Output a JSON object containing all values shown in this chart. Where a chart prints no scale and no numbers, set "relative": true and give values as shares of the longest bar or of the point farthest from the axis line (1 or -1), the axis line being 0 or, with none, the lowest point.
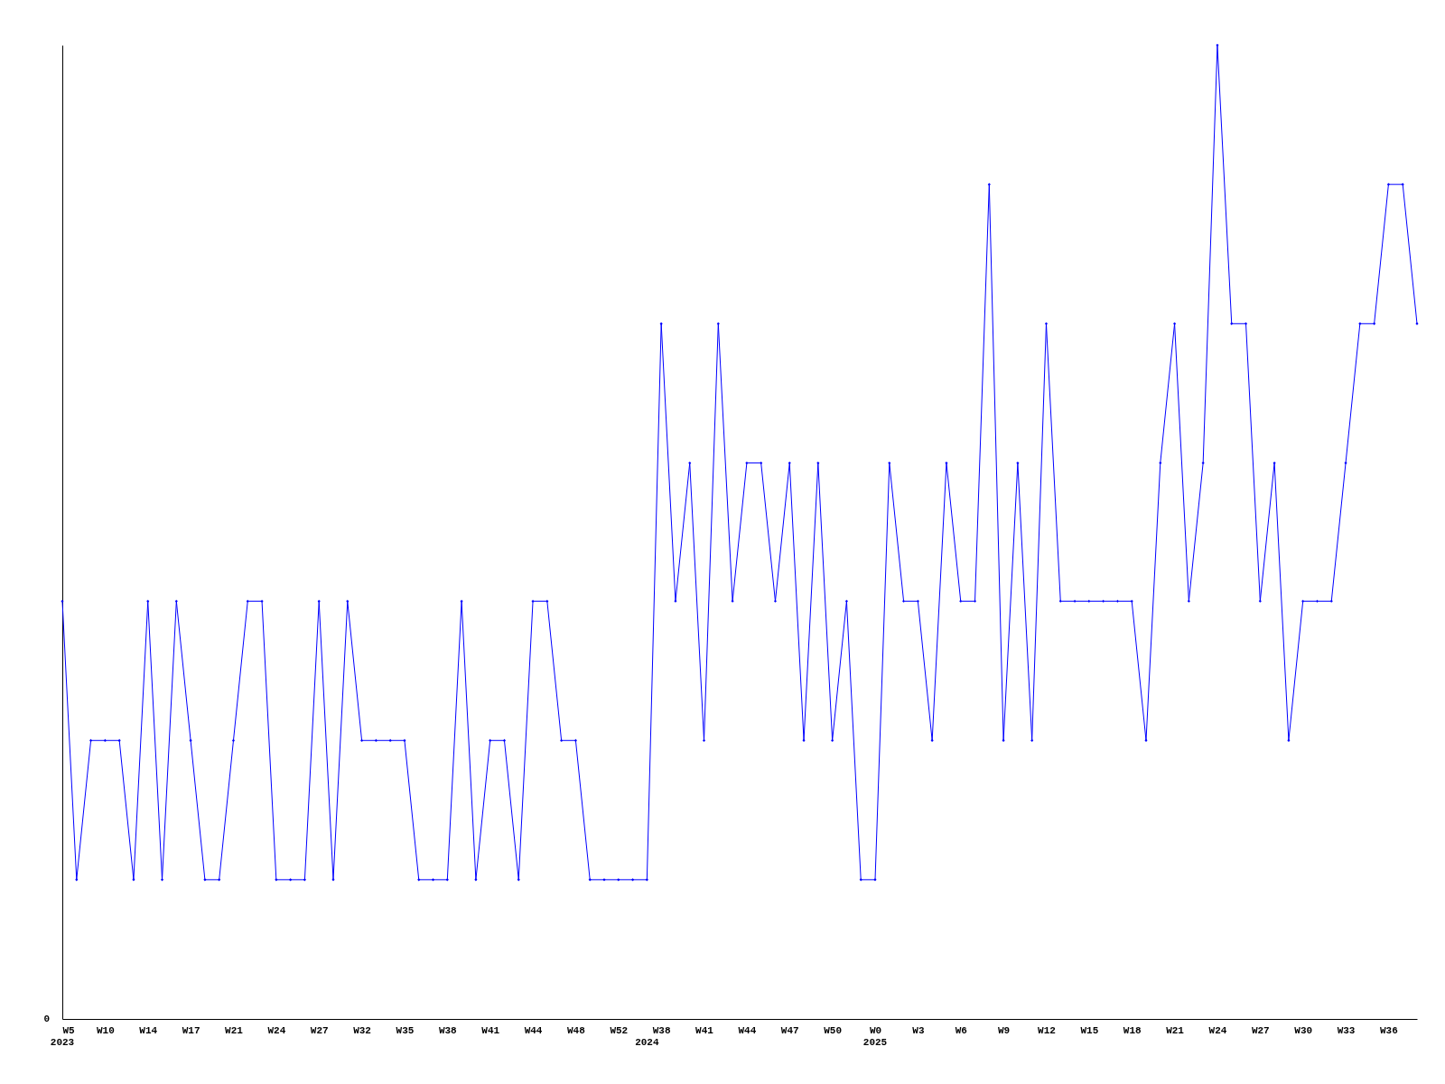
{
  "chart_data": {
    "type": "line",
    "relative": true,
    "marker": "diamond",
    "line_style": "solid",
    "grid": false,
    "legend": false,
    "annotations": [
      "0"
    ],
    "categories": [
      "W5\n2023",
      null,
      null,
      "W10",
      null,
      null,
      "W14",
      null,
      null,
      "W17",
      null,
      null,
      "W21",
      null,
      null,
      "W24",
      null,
      null,
      "W27",
      null,
      null,
      "W32",
      null,
      null,
      "W35",
      null,
      null,
      "W38",
      null,
      null,
      "W41",
      null,
      null,
      "W44",
      null,
      null,
      "W48",
      null,
      null,
      "W52",
      null,
      "\n2024",
      "W38",
      null,
      null,
      "W41",
      null,
      null,
      "W44",
      null,
      null,
      "W47",
      null,
      null,
      "W50",
      null,
      null,
      "W0\n2025",
      null,
      null,
      "W3",
      null,
      null,
      "W6",
      null,
      null,
      "W9",
      null,
      null,
      "W12",
      null,
      null,
      "W15",
      null,
      null,
      "W18",
      null,
      null,
      "W21",
      null,
      null,
      "W24",
      null,
      null,
      "W27",
      null,
      null,
      "W30",
      null,
      null,
      "W33",
      null,
      null,
      "W36",
      null,
      null
    ],
    "series": [
      {
        "color": "#0000ff",
        "values": [
          0.429,
          0.143,
          0.286,
          0.286,
          0.286,
          0.143,
          0.429,
          0.143,
          0.429,
          0.286,
          0.143,
          0.143,
          0.286,
          0.429,
          0.429,
          0.143,
          0.143,
          0.143,
          0.429,
          0.143,
          0.429,
          0.286,
          0.286,
          0.286,
          0.286,
          0.143,
          0.143,
          0.143,
          0.429,
          0.143,
          0.286,
          0.286,
          0.143,
          0.429,
          0.429,
          0.286,
          0.286,
          0.143,
          0.143,
          0.143,
          0.143,
          0.143,
          0.714,
          0.429,
          0.571,
          0.286,
          0.714,
          0.429,
          0.571,
          0.571,
          0.429,
          0.571,
          0.286,
          0.571,
          0.286,
          0.429,
          0.143,
          0.143,
          0.571,
          0.429,
          0.429,
          0.286,
          0.571,
          0.429,
          0.429,
          0.857,
          0.286,
          0.571,
          0.286,
          0.714,
          0.429,
          0.429,
          0.429,
          0.429,
          0.429,
          0.429,
          0.286,
          0.571,
          0.714,
          0.429,
          0.571,
          1,
          0.714,
          0.714,
          0.429,
          0.571,
          0.286,
          0.429,
          0.429,
          0.429,
          0.571,
          0.714,
          0.714,
          0.857,
          0.857,
          0.714
        ]
      }
    ]
  }
}
